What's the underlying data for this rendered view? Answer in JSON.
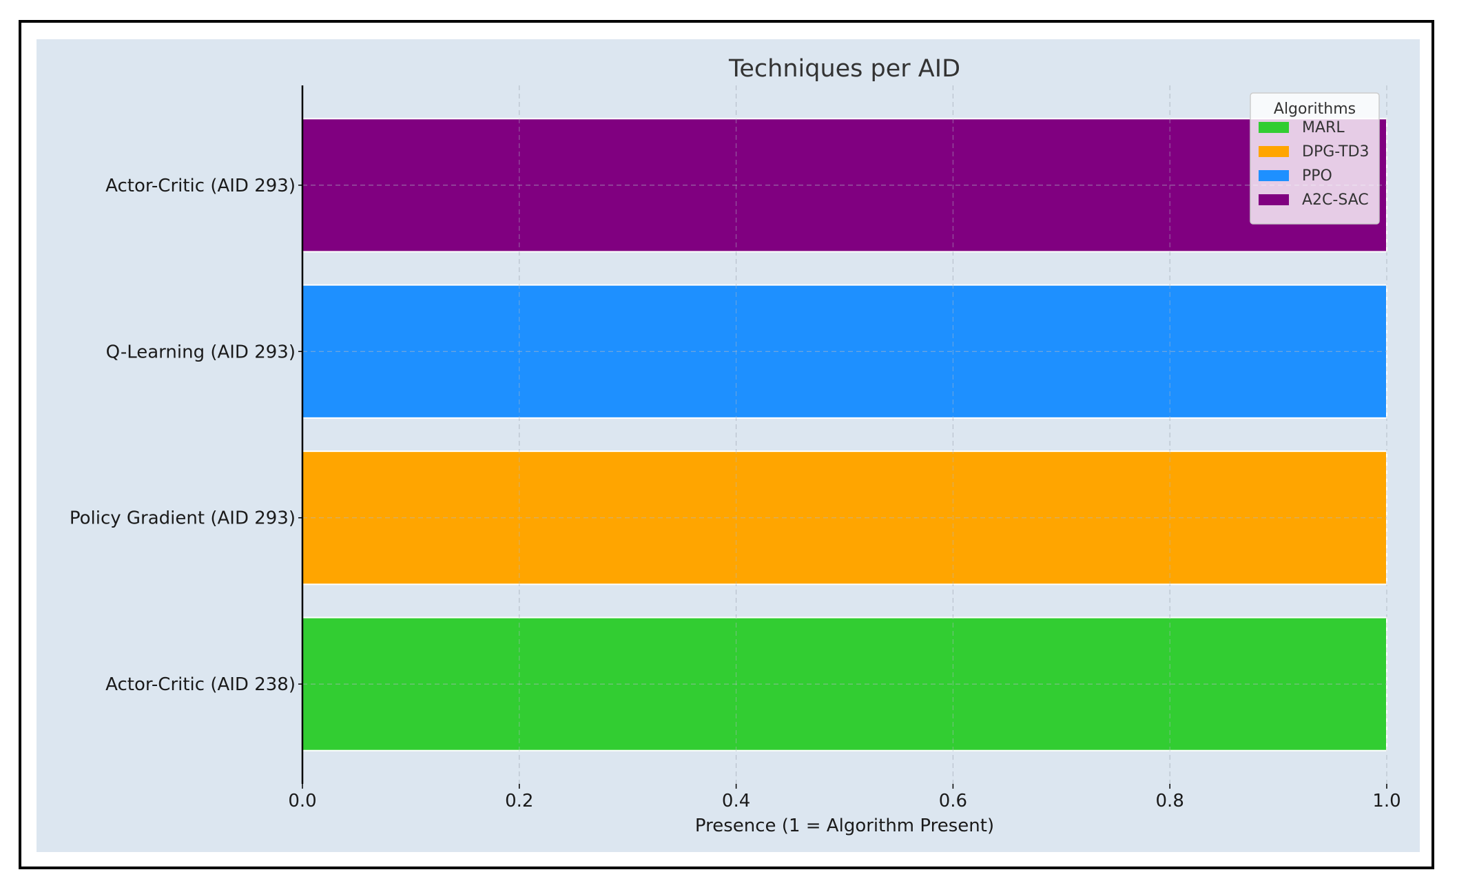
{
  "chart_data": {
    "type": "bar",
    "orientation": "horizontal",
    "title": "Techniques per AID",
    "xlabel": "Presence (1 = Algorithm Present)",
    "ylabel": "",
    "xlim": [
      0,
      1
    ],
    "xticks": [
      "0.0",
      "0.2",
      "0.4",
      "0.6",
      "0.8",
      "1.0"
    ],
    "grid": true,
    "categories": [
      "Actor-Critic (AID 238)",
      "Policy Gradient (AID 293)",
      "Q-Learning (AID 293)",
      "Actor-Critic (AID 293)"
    ],
    "values": [
      1,
      1,
      1,
      1
    ],
    "bar_colors": [
      "#32cd32",
      "#ffa500",
      "#1e90ff",
      "#800080"
    ],
    "legend": {
      "title": "Algorithms",
      "placement": "top-right",
      "entries": [
        {
          "label": "MARL",
          "color": "#32cd32"
        },
        {
          "label": "DPG-TD3",
          "color": "#ffa500"
        },
        {
          "label": "PPO",
          "color": "#1e90ff"
        },
        {
          "label": "A2C-SAC",
          "color": "#800080"
        }
      ]
    },
    "background_color": "#dce6f0"
  }
}
